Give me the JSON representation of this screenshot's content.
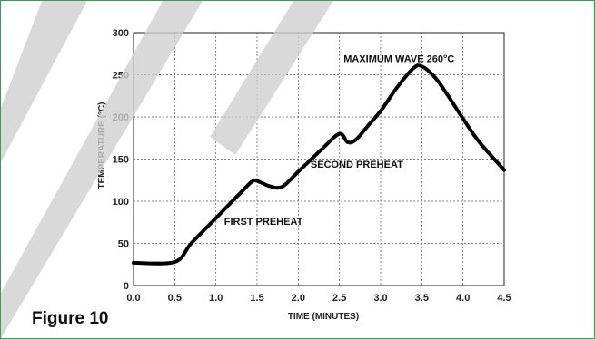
{
  "figure_label": "Figure 10",
  "chart_data": {
    "type": "line",
    "xlabel": "TIME (MINUTES)",
    "ylabel": "TEMPERATURE (°C)",
    "xlim": [
      0,
      4.5
    ],
    "ylim": [
      0,
      300
    ],
    "xticks": [
      0,
      0.5,
      1,
      1.5,
      2,
      2.5,
      3,
      3.5,
      4,
      4.5
    ],
    "xtick_labels": [
      "0.0",
      "0.5",
      "1.0",
      "1.5",
      "2.0",
      "2.5",
      "3.0",
      "3.5",
      "4.0",
      "4.5"
    ],
    "yticks": [
      0,
      50,
      100,
      150,
      200,
      250,
      300
    ],
    "ytick_labels": [
      "0",
      "50",
      "100",
      "150",
      "200",
      "250",
      "300"
    ],
    "grid": true,
    "series": [
      {
        "x": [
          0,
          0.5,
          0.7,
          1.0,
          1.3,
          1.45,
          1.55,
          1.65,
          1.8,
          2.0,
          2.3,
          2.5,
          2.6,
          2.7,
          2.85,
          3.0,
          3.2,
          3.4,
          3.5,
          3.65,
          3.8,
          4.0,
          4.2,
          4.5
        ],
        "y": [
          27,
          28,
          50,
          80,
          110,
          124,
          122,
          118,
          117,
          135,
          163,
          180,
          170,
          173,
          190,
          207,
          235,
          258,
          260,
          248,
          228,
          198,
          170,
          137
        ]
      }
    ],
    "annotations": [
      {
        "text": "MAXIMUM WAVE 260°C",
        "x": 2.55,
        "y": 265
      },
      {
        "text": "SECOND PREHEAT",
        "x": 2.15,
        "y": 140
      },
      {
        "text": "FIRST PREHEAT",
        "x": 1.1,
        "y": 72
      }
    ]
  }
}
